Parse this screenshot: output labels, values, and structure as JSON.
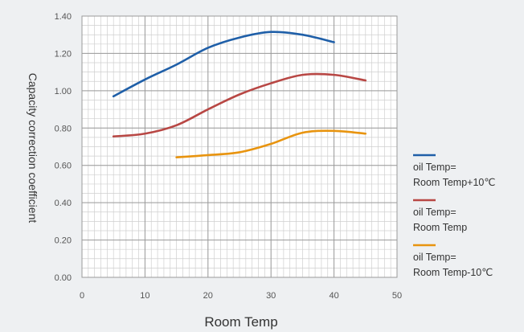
{
  "chart_data": {
    "type": "line",
    "xlabel": "Room Temp",
    "ylabel": "Capacity correction coefficient",
    "xlim": [
      0,
      50
    ],
    "ylim": [
      0,
      1.4
    ],
    "x_ticks": [
      "0",
      "10",
      "20",
      "30",
      "40",
      "50"
    ],
    "y_ticks": [
      "0.00",
      "0.20",
      "0.40",
      "0.60",
      "0.80",
      "1.00",
      "1.20",
      "1.40"
    ],
    "x_tick_values": [
      0,
      10,
      20,
      30,
      40,
      50
    ],
    "y_tick_values": [
      0,
      0.2,
      0.4,
      0.6,
      0.8,
      1.0,
      1.2,
      1.4
    ],
    "grid": true,
    "legend_position": "right",
    "series": [
      {
        "name_lines": [
          "oil Temp=",
          "Room Temp+10℃"
        ],
        "color": "#1f5fa8",
        "x": [
          5,
          10,
          15,
          20,
          25,
          30,
          35,
          40
        ],
        "y": [
          0.97,
          1.06,
          1.14,
          1.23,
          1.285,
          1.315,
          1.3,
          1.26
        ]
      },
      {
        "name_lines": [
          "oil Temp=",
          "Room Temp"
        ],
        "color": "#b84744",
        "x": [
          5,
          10,
          15,
          20,
          25,
          30,
          35,
          40,
          45
        ],
        "y": [
          0.755,
          0.77,
          0.815,
          0.9,
          0.98,
          1.04,
          1.085,
          1.085,
          1.055
        ]
      },
      {
        "name_lines": [
          "oil Temp=",
          "Room Temp-10℃"
        ],
        "color": "#e8940f",
        "x": [
          15,
          20,
          25,
          30,
          35,
          40,
          45
        ],
        "y": [
          0.643,
          0.655,
          0.67,
          0.715,
          0.775,
          0.785,
          0.77
        ]
      }
    ]
  }
}
